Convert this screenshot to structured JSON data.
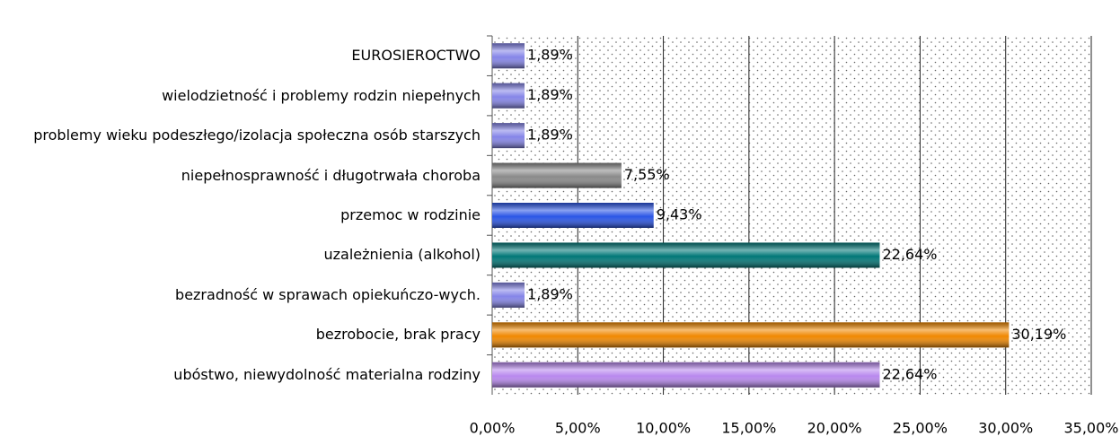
{
  "chart_data": {
    "type": "bar",
    "orientation": "horizontal",
    "categories": [
      "EUROSIEROCTWO",
      "wielodzietność i problemy rodzin niepełnych",
      "problemy wieku podeszłego/izolacja społeczna osób starszych",
      "niepełnosprawność i długotrwała choroba",
      "przemoc w rodzinie",
      "uzależnienia (alkohol)",
      "bezradność w sprawach opiekuńczo-wych.",
      "bezrobocie, brak pracy",
      "ubóstwo, niewydolność materialna rodziny"
    ],
    "values": [
      1.89,
      1.89,
      1.89,
      7.55,
      9.43,
      22.64,
      1.89,
      30.19,
      22.64
    ],
    "value_labels": [
      "1,89%",
      "1,89%",
      "1,89%",
      "7,55%",
      "9,43%",
      "22,64%",
      "1,89%",
      "30,19%",
      "22,64%"
    ],
    "colors": [
      "#8585e8",
      "#8585e8",
      "#8585e8",
      "#8a8a8a",
      "#2a55e6",
      "#007777",
      "#8585e8",
      "#f08800",
      "#b888ee"
    ],
    "xlim": [
      0,
      35
    ],
    "xticks": [
      {
        "value": 0,
        "label": "0,00%"
      },
      {
        "value": 5,
        "label": "5,00%"
      },
      {
        "value": 10,
        "label": "10,00%"
      },
      {
        "value": 15,
        "label": "15,00%"
      },
      {
        "value": 20,
        "label": "20,00%"
      },
      {
        "value": 25,
        "label": "25,00%"
      },
      {
        "value": 30,
        "label": "30,00%"
      },
      {
        "value": 35,
        "label": "35,00%"
      }
    ],
    "grid": true
  }
}
